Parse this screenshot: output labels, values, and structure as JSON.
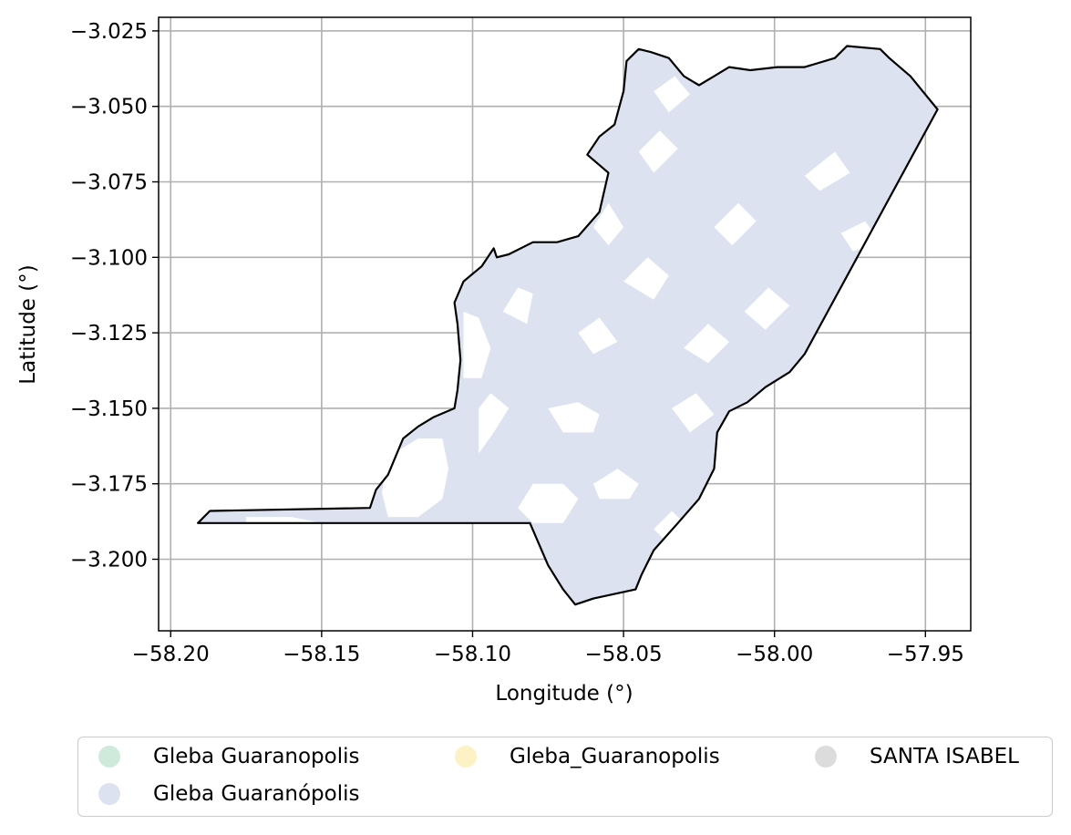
{
  "chart_data": {
    "type": "map",
    "xlabel": "Longitude (°)",
    "ylabel": "Latitude (°)",
    "xlim": [
      -58.204,
      -57.935
    ],
    "ylim": [
      -3.2237,
      -3.0205
    ],
    "xticks": [
      -58.2,
      -58.15,
      -58.1,
      -58.05,
      -58.0,
      -57.95
    ],
    "xtick_labels": [
      "−58.20",
      "−58.15",
      "−58.10",
      "−58.05",
      "−58.00",
      "−57.95"
    ],
    "yticks": [
      -3.025,
      -3.05,
      -3.075,
      -3.1,
      -3.125,
      -3.15,
      -3.175,
      -3.2
    ],
    "ytick_labels": [
      "−3.025",
      "−3.050",
      "−3.075",
      "−3.100",
      "−3.125",
      "−3.150",
      "−3.175",
      "−3.200"
    ],
    "grid": true,
    "legend_position": "below",
    "legend": [
      {
        "label": "Gleba Guaranopolis",
        "color": "#cfeadb"
      },
      {
        "label": "Gleba_Guaranopolis",
        "color": "#fdf1c6"
      },
      {
        "label": "SANTA ISABEL",
        "color": "#dcdcdc"
      },
      {
        "label": "Gleba Guaranópolis",
        "color": "#dde2f0"
      }
    ],
    "fill_color": "#dde2f0",
    "boundary_color": "#000000",
    "boundary": [
      [
        -58.191,
        -3.188
      ],
      [
        -58.187,
        -3.184
      ],
      [
        -58.134,
        -3.183
      ],
      [
        -58.132,
        -3.177
      ],
      [
        -58.128,
        -3.172
      ],
      [
        -58.123,
        -3.16
      ],
      [
        -58.118,
        -3.156
      ],
      [
        -58.113,
        -3.153
      ],
      [
        -58.106,
        -3.15
      ],
      [
        -58.105,
        -3.144
      ],
      [
        -58.104,
        -3.134
      ],
      [
        -58.105,
        -3.122
      ],
      [
        -58.106,
        -3.115
      ],
      [
        -58.103,
        -3.108
      ],
      [
        -58.097,
        -3.103
      ],
      [
        -58.093,
        -3.097
      ],
      [
        -58.092,
        -3.1
      ],
      [
        -58.088,
        -3.099
      ],
      [
        -58.08,
        -3.095
      ],
      [
        -58.072,
        -3.095
      ],
      [
        -58.065,
        -3.093
      ],
      [
        -58.058,
        -3.085
      ],
      [
        -58.055,
        -3.072
      ],
      [
        -58.062,
        -3.066
      ],
      [
        -58.058,
        -3.06
      ],
      [
        -58.053,
        -3.056
      ],
      [
        -58.05,
        -3.045
      ],
      [
        -58.049,
        -3.035
      ],
      [
        -58.045,
        -3.031
      ],
      [
        -58.041,
        -3.032
      ],
      [
        -58.035,
        -3.034
      ],
      [
        -58.03,
        -3.04
      ],
      [
        -58.025,
        -3.043
      ],
      [
        -58.02,
        -3.04
      ],
      [
        -58.015,
        -3.037
      ],
      [
        -58.008,
        -3.038
      ],
      [
        -57.999,
        -3.037
      ],
      [
        -57.99,
        -3.037
      ],
      [
        -57.98,
        -3.034
      ],
      [
        -57.976,
        -3.03
      ],
      [
        -57.965,
        -3.031
      ],
      [
        -57.962,
        -3.034
      ],
      [
        -57.955,
        -3.04
      ],
      [
        -57.946,
        -3.051
      ],
      [
        -57.99,
        -3.132
      ],
      [
        -57.995,
        -3.138
      ],
      [
        -58.003,
        -3.143
      ],
      [
        -58.009,
        -3.148
      ],
      [
        -58.015,
        -3.151
      ],
      [
        -58.019,
        -3.158
      ],
      [
        -58.02,
        -3.17
      ],
      [
        -58.025,
        -3.18
      ],
      [
        -58.032,
        -3.188
      ],
      [
        -58.04,
        -3.197
      ],
      [
        -58.044,
        -3.205
      ],
      [
        -58.046,
        -3.21
      ],
      [
        -58.06,
        -3.213
      ],
      [
        -58.066,
        -3.215
      ],
      [
        -58.07,
        -3.21
      ],
      [
        -58.075,
        -3.202
      ],
      [
        -58.081,
        -3.188
      ],
      [
        -58.191,
        -3.188
      ]
    ]
  }
}
